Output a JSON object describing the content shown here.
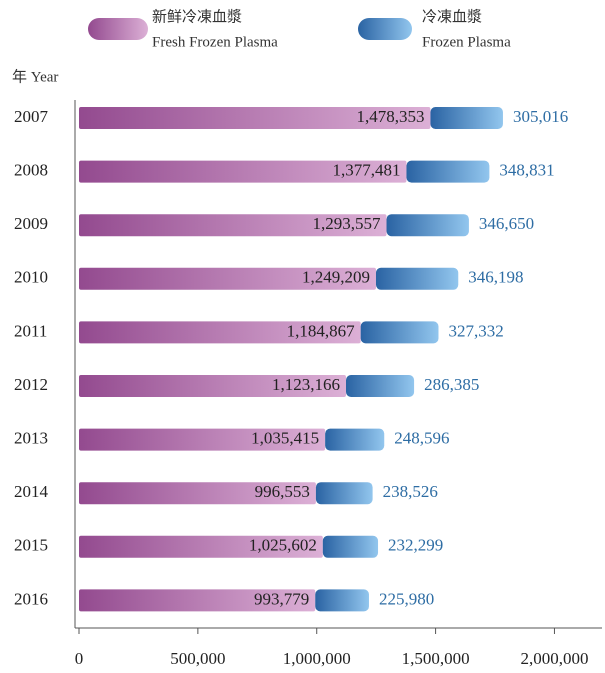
{
  "chart_data": {
    "type": "bar",
    "orientation": "horizontal",
    "stacked": true,
    "y_label": "年 Year",
    "categories": [
      "2007",
      "2008",
      "2009",
      "2010",
      "2011",
      "2012",
      "2013",
      "2014",
      "2015",
      "2016"
    ],
    "series": [
      {
        "name": "新鲜冷凍血漿",
        "name_en": "Fresh Frozen Plasma",
        "color": "#9a5096",
        "values": [
          1478353,
          1377481,
          1293557,
          1249209,
          1184867,
          1123166,
          1035415,
          996553,
          1025602,
          993779
        ],
        "value_labels": [
          "1,478,353",
          "1,377,481",
          "1,293,557",
          "1,249,209",
          "1,184,867",
          "1,123,166",
          "1,035,415",
          "996,553",
          "1,025,602",
          "993,779"
        ]
      },
      {
        "name": "冷凍血漿",
        "name_en": "Frozen Plasma",
        "color": "#2e6aa8",
        "values": [
          305016,
          348831,
          346650,
          346198,
          327332,
          286385,
          248596,
          238526,
          232299,
          225980
        ],
        "value_labels": [
          "305,016",
          "348,831",
          "346,650",
          "346,198",
          "327,332",
          "286,385",
          "248,596",
          "238,526",
          "232,299",
          "225,980"
        ]
      }
    ],
    "xlim": [
      0,
      2200000
    ],
    "xticks": [
      0,
      {
        "value": 500000,
        "label": "500,000"
      },
      {
        "value": 1000000,
        "label": "1,000,000"
      },
      {
        "value": 1500000,
        "label": "1,500,000"
      },
      {
        "value": 2000000,
        "label": "2,000,000"
      }
    ]
  }
}
